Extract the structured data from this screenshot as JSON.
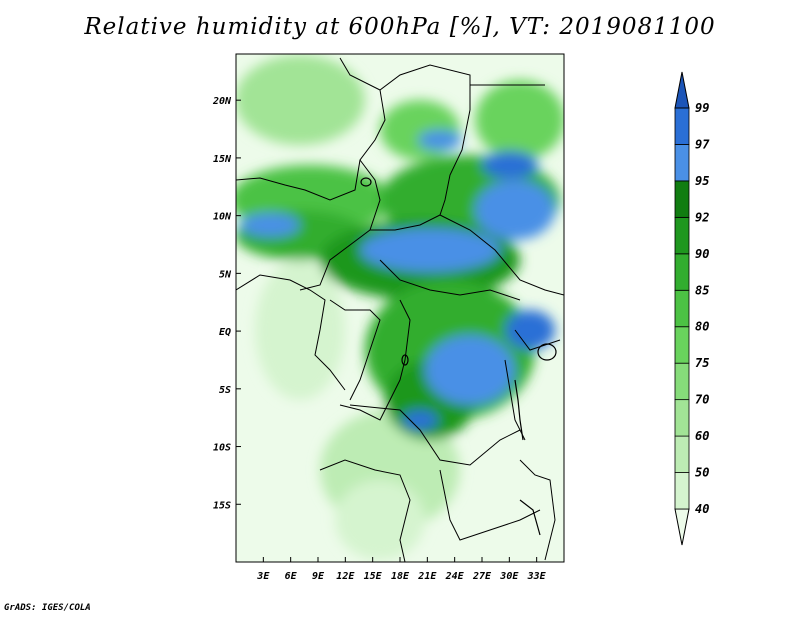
{
  "title": "Relative humidity at 600hPa [%], VT: 2019081100",
  "credit": "GrADS: IGES/COLA",
  "map": {
    "lon_range": [
      0,
      36
    ],
    "lat_range": [
      -20,
      24
    ],
    "lon_ticks": [
      "3E",
      "6E",
      "9E",
      "12E",
      "15E",
      "18E",
      "21E",
      "24E",
      "27E",
      "30E",
      "33E"
    ],
    "lat_ticks": [
      "20N",
      "15N",
      "10N",
      "5N",
      "EQ",
      "5S",
      "10S",
      "15S"
    ]
  },
  "colorbar": {
    "levels": [
      "40",
      "50",
      "60",
      "70",
      "75",
      "80",
      "85",
      "90",
      "92",
      "95",
      "97",
      "99"
    ],
    "colors": [
      "#edfbea",
      "#d5f4cf",
      "#bdecb4",
      "#a2e496",
      "#86dc7a",
      "#69d35d",
      "#4cc244",
      "#32ad2f",
      "#1f971f",
      "#117d11",
      "#4a90e6",
      "#2a6fd6",
      "#1c55b8"
    ]
  }
}
